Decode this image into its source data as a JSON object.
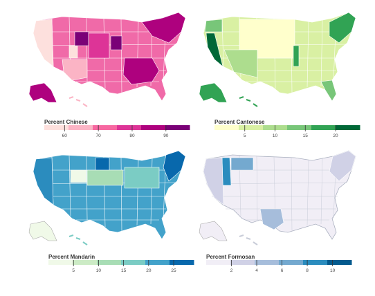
{
  "maps": [
    {
      "legend_title": "Percent Chinese",
      "ticks": [
        "60",
        "70",
        "80",
        "90"
      ],
      "tick_values": [
        60,
        70,
        80,
        90
      ],
      "range": [
        54,
        97
      ],
      "colors": [
        "#fde0dd",
        "#fbb4c5",
        "#f768a1",
        "#dd3497",
        "#ae017e",
        "#7a0177"
      ],
      "base_color": "#f06aa8"
    },
    {
      "legend_title": "Percent Cantonese",
      "ticks": [
        "5",
        "10",
        "15",
        "20"
      ],
      "tick_values": [
        5,
        10,
        15,
        20
      ],
      "range": [
        0,
        24
      ],
      "colors": [
        "#ffffcc",
        "#d9f0a3",
        "#addd8e",
        "#78c679",
        "#31a354",
        "#006837"
      ],
      "base_color": "#c2e29a"
    },
    {
      "legend_title": "Percent Mandarin",
      "ticks": [
        "5",
        "10",
        "15",
        "20",
        "25"
      ],
      "tick_values": [
        5,
        10,
        15,
        20,
        25
      ],
      "range": [
        0,
        29
      ],
      "colors": [
        "#f0f9e8",
        "#ccebc5",
        "#a8ddb5",
        "#7bccc4",
        "#43a2ca",
        "#0868ac"
      ],
      "base_color": "#43a2ca"
    },
    {
      "legend_title": "Percent Formosan",
      "ticks": [
        "2",
        "4",
        "6",
        "8",
        "10"
      ],
      "tick_values": [
        2,
        4,
        6,
        8,
        10
      ],
      "range": [
        0,
        11.5
      ],
      "colors": [
        "#f1eef6",
        "#d0d1e6",
        "#a6bddb",
        "#74a9cf",
        "#2b8cbe",
        "#045a8d"
      ],
      "base_color": "#eef0f5"
    }
  ]
}
